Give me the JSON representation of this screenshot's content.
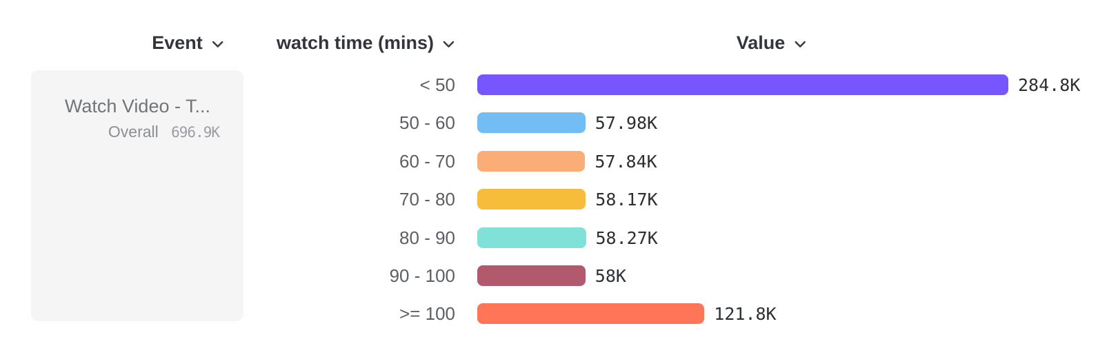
{
  "header": {
    "columns": [
      {
        "label": "Event"
      },
      {
        "label": "watch time (mins)"
      },
      {
        "label": "Value"
      }
    ]
  },
  "event_card": {
    "title": "Watch Video - T...",
    "overall_label": "Overall",
    "overall_value": "696.9K"
  },
  "chart_data": {
    "type": "bar",
    "orientation": "horizontal",
    "title": "",
    "xlabel": "Value",
    "ylabel": "watch time (mins)",
    "series_name": "Watch Video - Total watch time",
    "categories": [
      "< 50",
      "50 - 60",
      "60 - 70",
      "70 - 80",
      "80 - 90",
      "90 - 100",
      ">= 100"
    ],
    "values_k": [
      284.8,
      57.98,
      57.84,
      58.17,
      58.27,
      58,
      121.8
    ],
    "value_labels": [
      "284.8K",
      "57.98K",
      "57.84K",
      "58.17K",
      "58.27K",
      "58K",
      "121.8K"
    ],
    "overall_total_k": 696.9,
    "max_value_k": 284.8,
    "bar_colors": [
      "#7856FF",
      "#72BEF4",
      "#FBAD78",
      "#F8BC3B",
      "#80E1D9",
      "#B2596E",
      "#FF7557"
    ],
    "grid": false,
    "legend": false
  },
  "colors": {
    "header_text": "#32353a",
    "chevron": "#3a3d42",
    "card_background": "#f5f5f6",
    "event_title": "#717579",
    "overall_text": "#8b8e93",
    "bucket_label": "#5b5f65",
    "value_label": "#2c2f33"
  }
}
